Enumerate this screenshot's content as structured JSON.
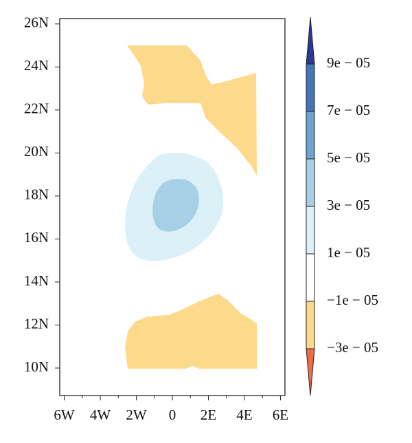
{
  "chart_data": {
    "type": "contour",
    "xlim": [
      -6.25,
      6.25
    ],
    "ylim": [
      8.72,
      26.25
    ],
    "xticks": [
      {
        "value": -6,
        "label": "6W"
      },
      {
        "value": -4,
        "label": "4W"
      },
      {
        "value": -2,
        "label": "2W"
      },
      0,
      {
        "value": 2,
        "label": "2E"
      },
      {
        "value": 4,
        "label": "4E"
      },
      {
        "value": 6,
        "label": "6E"
      }
    ],
    "yticks": [
      {
        "value": 10,
        "label": "10N"
      },
      {
        "value": 12,
        "label": "12N"
      },
      {
        "value": 14,
        "label": "14N"
      },
      {
        "value": 16,
        "label": "16N"
      },
      {
        "value": 18,
        "label": "18N"
      },
      {
        "value": 20,
        "label": "20N"
      },
      {
        "value": 22,
        "label": "22N"
      },
      {
        "value": 24,
        "label": "24N"
      },
      {
        "value": 26,
        "label": "26N"
      }
    ],
    "colorbar": {
      "ticks": [
        {
          "value": -3e-05,
          "label": "−3e − 05"
        },
        {
          "value": -1e-05,
          "label": "−1e − 05"
        },
        {
          "value": 1e-05,
          "label": "1e − 05"
        },
        {
          "value": 3e-05,
          "label": "3e − 05"
        },
        {
          "value": 5e-05,
          "label": "5e − 05"
        },
        {
          "value": 7e-05,
          "label": "7e − 05"
        },
        {
          "value": 9e-05,
          "label": "9e − 05"
        }
      ],
      "colors": [
        "#f26b45",
        "#fdd98b",
        "#ffffff",
        "#dcf0f7",
        "#a7d0e6",
        "#6ba4d3",
        "#4574b9",
        "#2b3990"
      ]
    }
  }
}
